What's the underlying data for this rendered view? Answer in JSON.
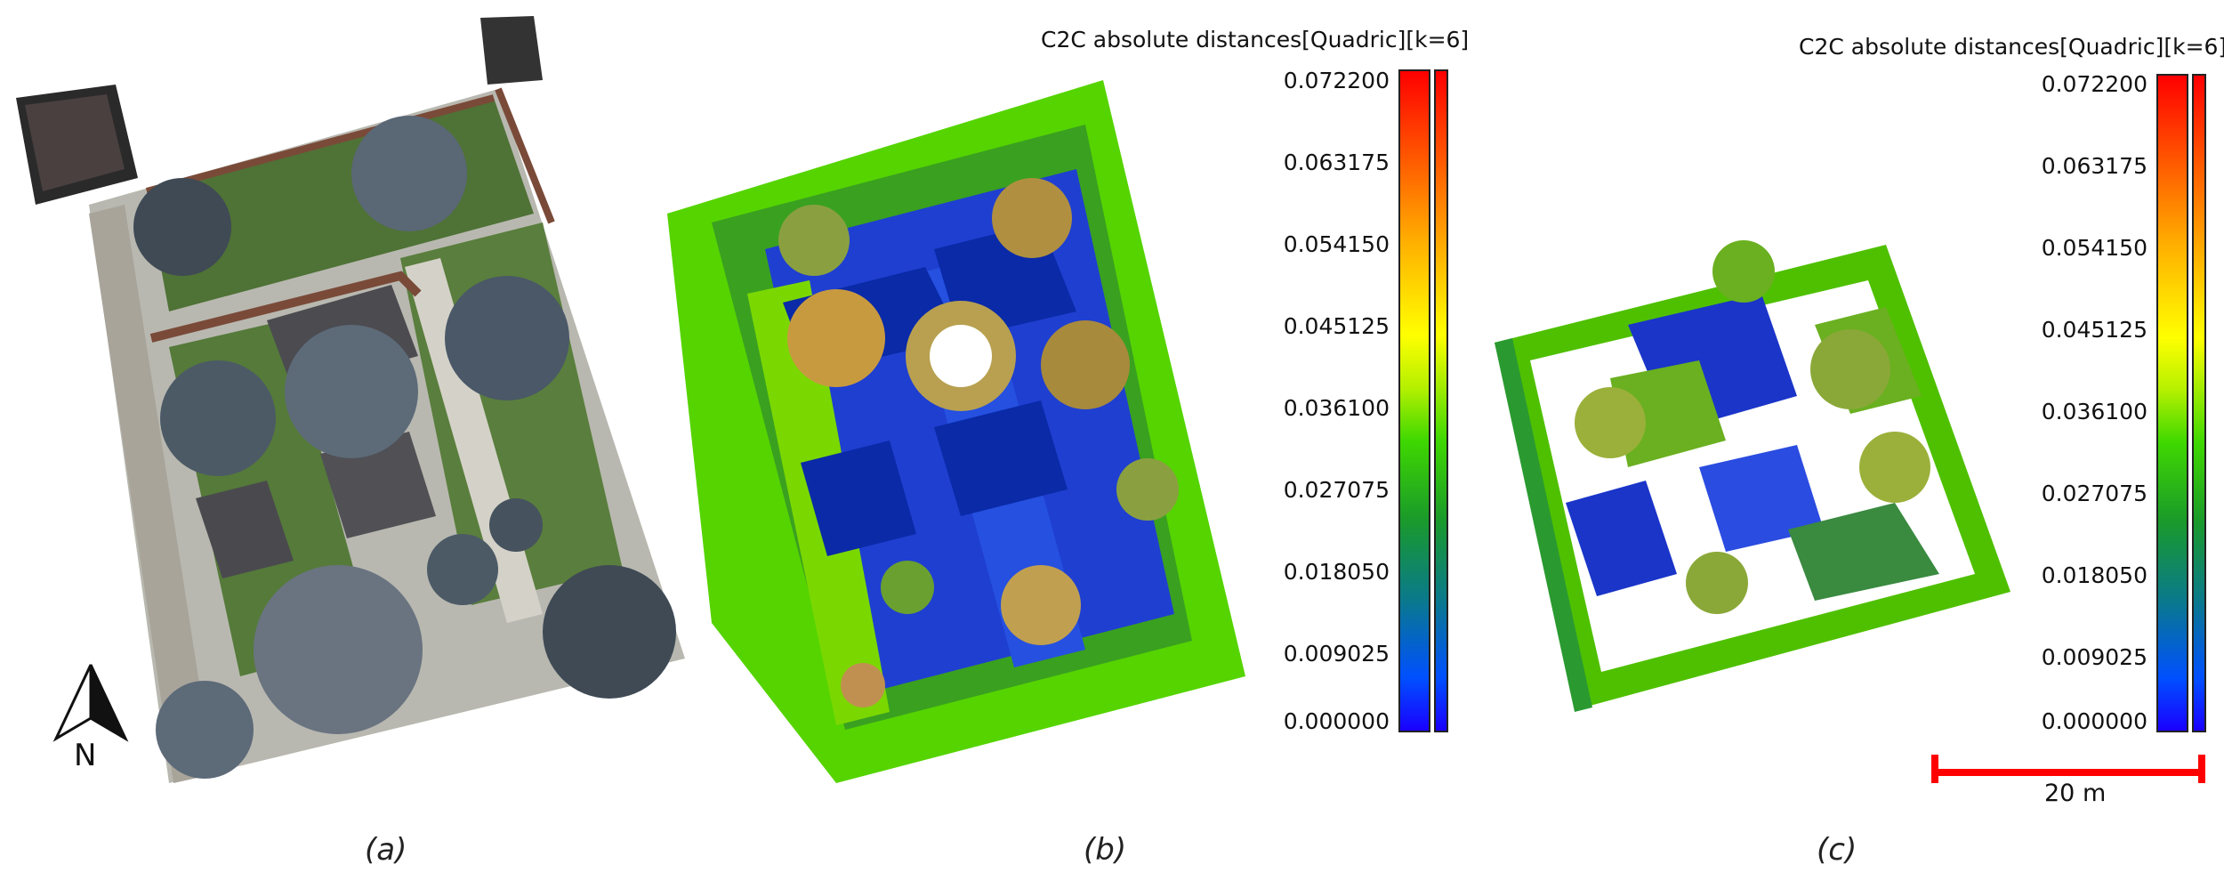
{
  "panels": [
    {
      "caption": "(a)"
    },
    {
      "caption": "(b)",
      "scalar_field_title": "C2C absolute distances[Quadric][k=6]"
    },
    {
      "caption": "(c)",
      "scalar_field_title": "C2C absolute distances[Quadric][k=6]"
    }
  ],
  "colorbar_ticks": [
    "0.072200",
    "0.063175",
    "0.054150",
    "0.045125",
    "0.036100",
    "0.027075",
    "0.018050",
    "0.009025",
    "0.000000"
  ],
  "north_arrow": {
    "label": "N",
    "icon": "north-arrow-icon"
  },
  "scale_bar": {
    "label": "20 m",
    "color": "#ff0000"
  },
  "colors": {
    "low": "#1a00ff",
    "mid": "#3fd800",
    "high": "#ff0000"
  }
}
